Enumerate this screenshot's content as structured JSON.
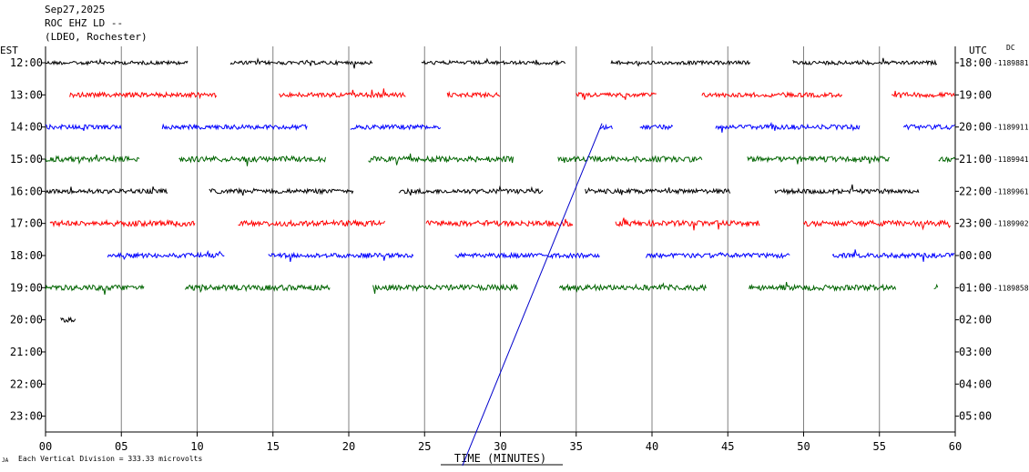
{
  "header": {
    "date": "Sep27,2025",
    "station": "ROC EHZ LD --",
    "network": "(LDEO, Rochester)"
  },
  "left_zone": "EST",
  "right_zone": "UTC",
  "dc_label": "DC",
  "footer": {
    "scale_text": "Each Vertical Division =  333.33 microvolts",
    "logo_text": "JA"
  },
  "colors": {
    "axis": "#000000",
    "grid": "#808080",
    "diagonal": "#0000cc",
    "traces": [
      "#000000",
      "#ff0000",
      "#0000ff",
      "#006400"
    ]
  },
  "chart_data": {
    "type": "line",
    "title": "",
    "xlabel": "TIME (MINUTES)",
    "ylabel": "",
    "xlim": [
      0,
      60
    ],
    "x_ticks": [
      "00",
      "05",
      "10",
      "15",
      "20",
      "25",
      "30",
      "35",
      "40",
      "45",
      "50",
      "55",
      "60"
    ],
    "grid": "vertical every 5 minutes",
    "rows": [
      {
        "est": "12:00",
        "utc": "18:00",
        "dc": "-1189881",
        "color": "#000000",
        "segments": [
          [
            0,
            9.4
          ],
          [
            12.2,
            21.6
          ],
          [
            24.8,
            34.3
          ],
          [
            37.3,
            46.5
          ],
          [
            49.3,
            58.8
          ]
        ],
        "noise": 4
      },
      {
        "est": "13:00",
        "utc": "19:00",
        "dc": "",
        "color": "#ff0000",
        "segments": [
          [
            1.6,
            11.3
          ],
          [
            15.4,
            23.8
          ],
          [
            26.5,
            30.0
          ],
          [
            35.0,
            40.3
          ],
          [
            43.3,
            52.6
          ],
          [
            55.8,
            60
          ]
        ],
        "noise": 5
      },
      {
        "est": "14:00",
        "utc": "20:00",
        "dc": "-1189911",
        "color": "#0000ff",
        "segments": [
          [
            0,
            5
          ],
          [
            7.7,
            17.3
          ],
          [
            20.1,
            26.1
          ],
          [
            36.6,
            37.4
          ],
          [
            39.2,
            41.4
          ],
          [
            44.2,
            53.7
          ],
          [
            56.6,
            60
          ]
        ],
        "noise": 5
      },
      {
        "est": "15:00",
        "utc": "21:00",
        "dc": "-1189941",
        "color": "#006400",
        "segments": [
          [
            0,
            6.2
          ],
          [
            8.8,
            18.5
          ],
          [
            21.3,
            30.9
          ],
          [
            33.8,
            43.3
          ],
          [
            46.3,
            55.7
          ],
          [
            58.9,
            60
          ]
        ],
        "noise": 6
      },
      {
        "est": "16:00",
        "utc": "22:00",
        "dc": "-1189961",
        "color": "#000000",
        "segments": [
          [
            0,
            8.1
          ],
          [
            10.8,
            20.3
          ],
          [
            23.3,
            32.8
          ],
          [
            35.6,
            45.2
          ],
          [
            48.1,
            57.6
          ]
        ],
        "noise": 5
      },
      {
        "est": "17:00",
        "utc": "23:00",
        "dc": "-1189902",
        "color": "#ff0000",
        "segments": [
          [
            0.3,
            9.9
          ],
          [
            12.7,
            22.4
          ],
          [
            25.1,
            34.8
          ],
          [
            37.6,
            47.1
          ],
          [
            50.0,
            59.7
          ]
        ],
        "noise": 6
      },
      {
        "est": "18:00",
        "utc": "00:00",
        "dc": "",
        "color": "#0000ff",
        "segments": [
          [
            4.1,
            11.8
          ],
          [
            14.7,
            24.3
          ],
          [
            27.0,
            36.6
          ],
          [
            39.6,
            49.1
          ],
          [
            51.9,
            60
          ]
        ],
        "noise": 5
      },
      {
        "est": "19:00",
        "utc": "01:00",
        "dc": "-1189858",
        "color": "#006400",
        "segments": [
          [
            0,
            6.5
          ],
          [
            9.2,
            18.8
          ],
          [
            21.6,
            31.2
          ],
          [
            33.9,
            43.6
          ],
          [
            46.4,
            56.1
          ],
          [
            58.6,
            58.9
          ]
        ],
        "noise": 6
      },
      {
        "est": "20:00",
        "utc": "02:00",
        "dc": "",
        "color": "#000000",
        "segments": [
          [
            1.0,
            2.0
          ]
        ],
        "noise": 5
      },
      {
        "est": "21:00",
        "utc": "03:00",
        "dc": "",
        "color": "#000000",
        "segments": [],
        "noise": 0
      },
      {
        "est": "22:00",
        "utc": "04:00",
        "dc": "",
        "color": "#000000",
        "segments": [],
        "noise": 0
      },
      {
        "est": "23:00",
        "utc": "05:00",
        "dc": "",
        "color": "#000000",
        "segments": [],
        "noise": 0
      }
    ],
    "diagonal": {
      "x_start": 27.5,
      "x_end": 36.7
    }
  }
}
